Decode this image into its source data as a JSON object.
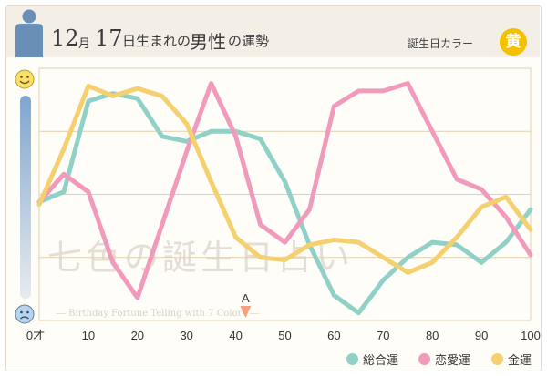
{
  "header": {
    "month_num": "12",
    "month_unit": "月",
    "day_num": "17",
    "title_mid": "日生まれの",
    "title_big": "男性",
    "title_end": "の運勢",
    "birth_color_label": "誕生日カラー",
    "birth_color_char": "黄"
  },
  "watermark": {
    "main": "七色の誕生日占い",
    "sub": "― Birthday Fortune Telling with 7 Colors ―"
  },
  "marker": {
    "label": "A",
    "x": 42
  },
  "colors": {
    "overall": "#8fd1c6",
    "love": "#f29abc",
    "money": "#f4d06f",
    "grid": "#e0cfb0",
    "marker": "#f5a07a"
  },
  "icons": {
    "top": "smile-icon",
    "bottom": "worried-icon",
    "header": "person-silhouette-icon"
  },
  "chart_data": {
    "type": "line",
    "x_tick_labels": [
      "0才",
      "10",
      "20",
      "30",
      "40",
      "50",
      "60",
      "70",
      "80",
      "90",
      "100"
    ],
    "x_ticks": [
      0,
      10,
      20,
      30,
      40,
      50,
      60,
      70,
      80,
      90,
      100
    ],
    "xlim": [
      0,
      100
    ],
    "ylim": [
      0,
      100
    ],
    "grid": true,
    "legend_position": "bottom-right",
    "series": [
      {
        "name": "総合運",
        "color": "#8fd1c6",
        "x": [
          0,
          5,
          10,
          15,
          20,
          25,
          30,
          35,
          40,
          45,
          50,
          55,
          60,
          65,
          70,
          75,
          80,
          85,
          90,
          95,
          100
        ],
        "y": [
          47,
          51,
          87,
          90,
          88,
          73,
          71,
          75,
          75,
          72,
          55,
          30,
          10,
          3,
          16,
          25,
          31,
          30,
          23,
          31,
          44
        ]
      },
      {
        "name": "恋愛運",
        "color": "#f29abc",
        "x": [
          0,
          5,
          10,
          15,
          20,
          25,
          30,
          35,
          40,
          45,
          50,
          55,
          60,
          65,
          70,
          75,
          80,
          85,
          90,
          95,
          100
        ],
        "y": [
          47,
          58,
          51,
          23,
          9,
          38,
          67,
          94,
          73,
          38,
          31,
          44,
          85,
          91,
          91,
          94,
          75,
          56,
          52,
          41,
          26
        ]
      },
      {
        "name": "金運",
        "color": "#f4d06f",
        "x": [
          0,
          5,
          10,
          15,
          20,
          25,
          30,
          35,
          40,
          45,
          50,
          55,
          60,
          65,
          70,
          75,
          80,
          85,
          90,
          95,
          100
        ],
        "y": [
          46,
          68,
          93,
          89,
          92,
          89,
          78,
          55,
          33,
          25,
          24,
          30,
          32,
          31,
          25,
          19,
          23,
          33,
          45,
          49,
          36
        ]
      }
    ]
  }
}
